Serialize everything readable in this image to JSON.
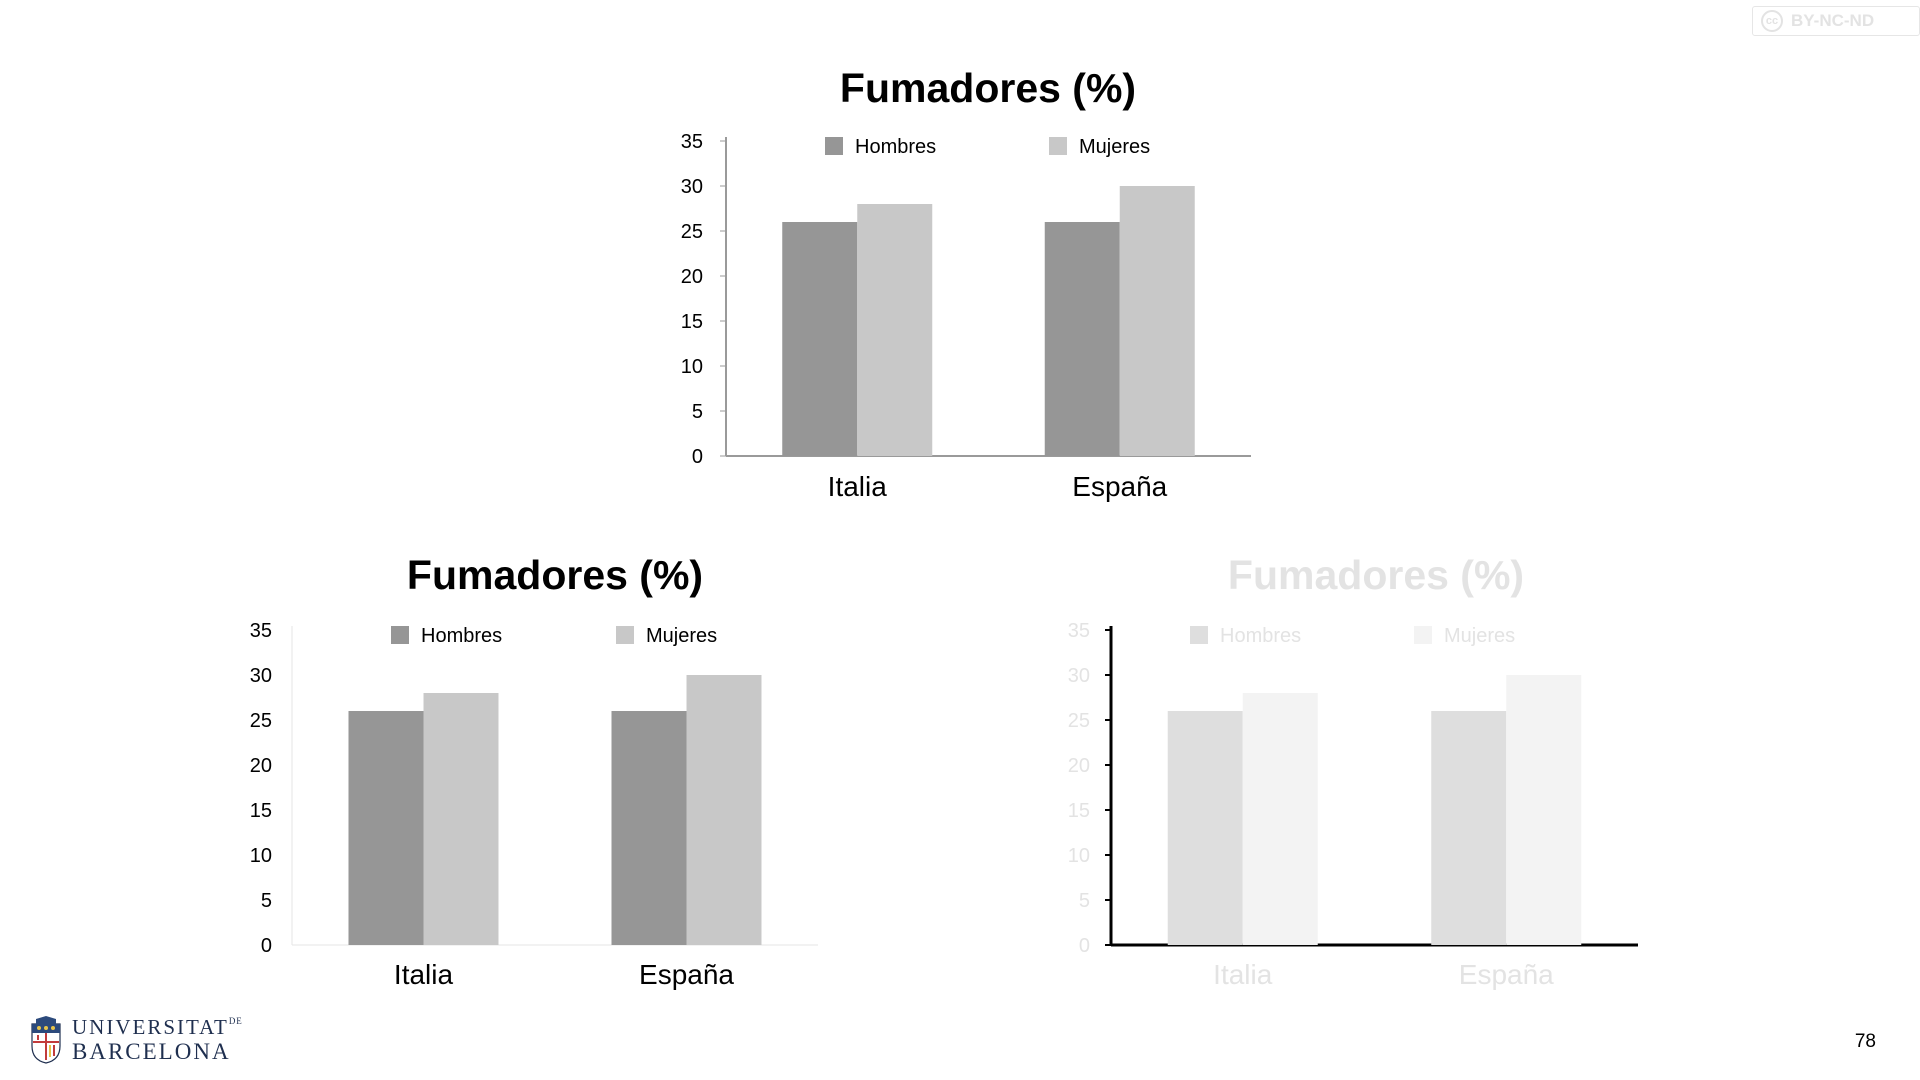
{
  "page_number": "78",
  "license": {
    "icon": "cc-license-icon",
    "text": "BY-NC-ND",
    "symbol": "cc"
  },
  "logo": {
    "line1": "UNIVERSITAT",
    "line1_suffix": "DE",
    "line2": "BARCELONA",
    "icon": "university-shield-icon"
  },
  "chart_data": [
    {
      "type": "bar",
      "title": "Fumadores (%)",
      "categories": [
        "Italia",
        "España"
      ],
      "series": [
        {
          "name": "Hombres",
          "values": [
            26,
            26
          ],
          "color": "#969696"
        },
        {
          "name": "Mujeres",
          "values": [
            28,
            30
          ],
          "color": "#c8c8c8"
        }
      ],
      "ylim": [
        0,
        35
      ],
      "yticks": [
        0,
        5,
        10,
        15,
        20,
        25,
        30,
        35
      ],
      "legend": "top",
      "grid": false,
      "axis_color": "#9a9a9a",
      "text_color": "#000000"
    },
    {
      "type": "bar",
      "title": "Fumadores (%)",
      "categories": [
        "Italia",
        "España"
      ],
      "series": [
        {
          "name": "Hombres",
          "values": [
            26,
            26
          ],
          "color": "#969696"
        },
        {
          "name": "Mujeres",
          "values": [
            28,
            30
          ],
          "color": "#c8c8c8"
        }
      ],
      "ylim": [
        0,
        35
      ],
      "yticks": [
        0,
        5,
        10,
        15,
        20,
        25,
        30,
        35
      ],
      "legend": "top",
      "grid": false,
      "axis_color": "#e6e6e6",
      "text_color": "#000000"
    },
    {
      "type": "bar",
      "title": "Fumadores (%)",
      "categories": [
        "Italia",
        "España"
      ],
      "series": [
        {
          "name": "Hombres",
          "values": [
            26,
            26
          ],
          "color": "#dedede"
        },
        {
          "name": "Mujeres",
          "values": [
            28,
            30
          ],
          "color": "#f3f3f3"
        }
      ],
      "ylim": [
        0,
        35
      ],
      "yticks": [
        0,
        5,
        10,
        15,
        20,
        25,
        30,
        35
      ],
      "legend": "top",
      "grid": false,
      "axis_color": "#000000",
      "text_color": "#e3e3e3"
    }
  ]
}
